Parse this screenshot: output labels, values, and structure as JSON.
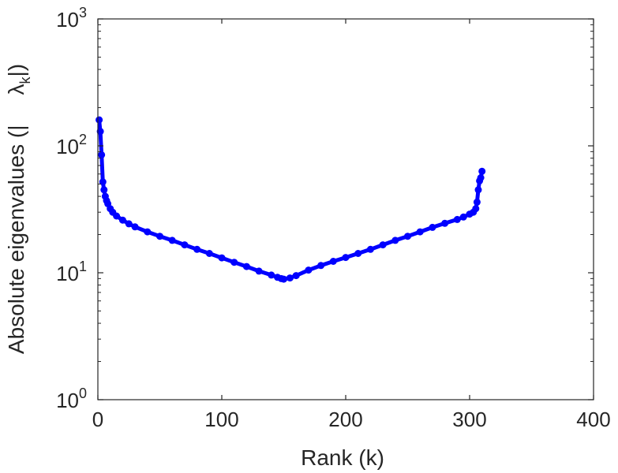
{
  "chart_data": {
    "type": "line",
    "title": "",
    "xlabel": "Rank (k)",
    "ylabel_prefix": "Absolute eigenvalues (|",
    "ylabel_lambda": "λ",
    "ylabel_sub": "k",
    "ylabel_suffix": "|)",
    "xlim": [
      0,
      400
    ],
    "ylim": [
      1,
      1000
    ],
    "yscale": "log",
    "grid": false,
    "legend": "none",
    "color": "#0000ff",
    "xticks": [
      {
        "value": 0,
        "label": "0"
      },
      {
        "value": 100,
        "label": "100"
      },
      {
        "value": 200,
        "label": "200"
      },
      {
        "value": 300,
        "label": "300"
      },
      {
        "value": 400,
        "label": "400"
      }
    ],
    "yticks": [
      {
        "value": 1,
        "base": "10",
        "exp": "0"
      },
      {
        "value": 10,
        "base": "10",
        "exp": "1"
      },
      {
        "value": 100,
        "base": "10",
        "exp": "2"
      },
      {
        "value": 1000,
        "base": "10",
        "exp": "3"
      }
    ],
    "series": [
      {
        "x": [
          1,
          2,
          3,
          4,
          5,
          6,
          7,
          8,
          10,
          12,
          15,
          20,
          25,
          30,
          40,
          50,
          60,
          70,
          80,
          90,
          100,
          110,
          120,
          130,
          140,
          145,
          148,
          150,
          155,
          160,
          170,
          180,
          190,
          200,
          210,
          220,
          230,
          240,
          250,
          260,
          270,
          280,
          290,
          295,
          300,
          303,
          305,
          306,
          307,
          308,
          309,
          310
        ],
        "y": [
          160,
          130,
          85,
          52,
          45,
          40,
          37,
          35,
          32,
          30,
          28,
          26,
          24.3,
          23,
          21,
          19.4,
          18,
          16.6,
          15.3,
          14.2,
          13.1,
          12.1,
          11.2,
          10.3,
          9.6,
          9.2,
          9.0,
          8.9,
          9.1,
          9.5,
          10.5,
          11.4,
          12.3,
          13.2,
          14.2,
          15.3,
          16.6,
          18,
          19.4,
          21,
          22.8,
          24.5,
          26.3,
          27.5,
          29,
          30,
          32,
          36,
          45,
          53,
          56,
          63
        ]
      }
    ]
  }
}
